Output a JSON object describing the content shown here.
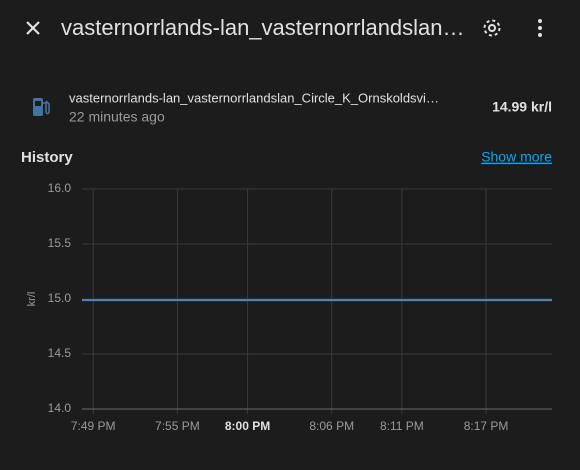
{
  "header": {
    "title": "vasternorrlands-lan_vasternorrlandslan…"
  },
  "entity": {
    "name": "vasternorrlands-lan_vasternorrlandslan_Circle_K_Ornskoldsvi…",
    "last_changed": "22 minutes ago",
    "state": "14.99 kr/l"
  },
  "history": {
    "title": "History",
    "link": "Show more"
  },
  "chart_data": {
    "type": "line",
    "ylabel": "kr/l",
    "x": [
      1188.2,
      1221.7
    ],
    "values": [
      14.99,
      14.99
    ],
    "color": "#4a86c5",
    "xlim": [
      1188.2,
      1221.7
    ],
    "xticks": [
      {
        "value": 1189,
        "label": "7:49 PM"
      },
      {
        "value": 1195,
        "label": "7:55 PM"
      },
      {
        "value": 1200,
        "label": "8:00 PM",
        "bold": true
      },
      {
        "value": 1206,
        "label": "8:06 PM"
      },
      {
        "value": 1211,
        "label": "8:11 PM"
      },
      {
        "value": 1217,
        "label": "8:17 PM"
      }
    ],
    "ylim": [
      14,
      16
    ],
    "yticks": [
      {
        "value": 14,
        "label": "14.0"
      },
      {
        "value": 14.5,
        "label": "14.5"
      },
      {
        "value": 15,
        "label": "15.0"
      },
      {
        "value": 15.5,
        "label": "15.5"
      },
      {
        "value": 16,
        "label": "16.0"
      }
    ],
    "grid": true
  }
}
